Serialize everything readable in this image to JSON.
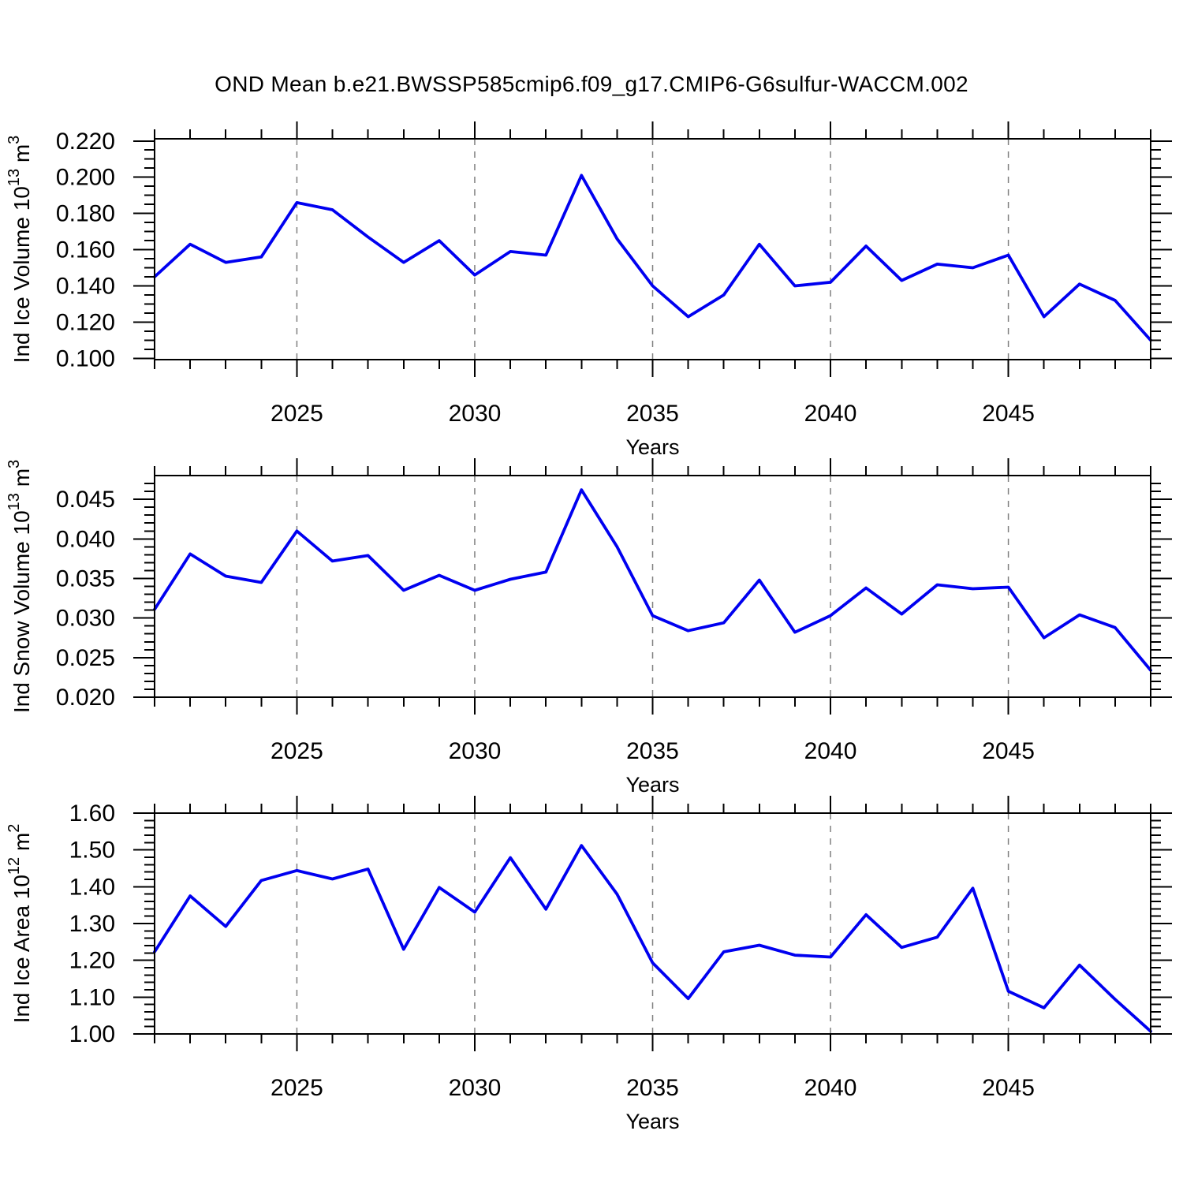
{
  "title": "OND Mean b.e21.BWSSP585cmip6.f09_g17.CMIP6-G6sulfur-WACCM.002",
  "colors": {
    "line": "#0000f0",
    "grid": "#7f7f7f",
    "axis": "#000000",
    "text": "#000000",
    "background": "#ffffff"
  },
  "x_axis": {
    "label": "Years",
    "start": 2021,
    "end": 2049,
    "major_ticks": [
      2025,
      2030,
      2035,
      2040,
      2045
    ],
    "minor_step": 1
  },
  "chart_data": [
    {
      "type": "line",
      "name": "ice-volume",
      "ylabel": "Ind Ice Volume 10^13 m^3",
      "ylabel_parts": [
        {
          "t": "Ind Ice Volume 10",
          "sup": false
        },
        {
          "t": "13",
          "sup": true
        },
        {
          "t": " m",
          "sup": false
        },
        {
          "t": "3",
          "sup": true
        }
      ],
      "xlabel": "Years",
      "ylim": [
        0.0993,
        0.2212
      ],
      "ytick_labels": [
        "0.100",
        "0.120",
        "0.140",
        "0.160",
        "0.180",
        "0.200",
        "0.220"
      ],
      "ytick_values": [
        0.1,
        0.12,
        0.14,
        0.16,
        0.18,
        0.2,
        0.22
      ],
      "ytick_minor_step": 0.005,
      "grid": "vertical-dashed",
      "x": [
        2021,
        2022,
        2023,
        2024,
        2025,
        2026,
        2027,
        2028,
        2029,
        2030,
        2031,
        2032,
        2033,
        2034,
        2035,
        2036,
        2037,
        2038,
        2039,
        2040,
        2041,
        2042,
        2043,
        2044,
        2045,
        2046,
        2047,
        2048,
        2049
      ],
      "values": [
        0.145,
        0.163,
        0.153,
        0.156,
        0.186,
        0.182,
        0.167,
        0.153,
        0.165,
        0.146,
        0.159,
        0.157,
        0.201,
        0.166,
        0.14,
        0.123,
        0.135,
        0.163,
        0.14,
        0.142,
        0.162,
        0.143,
        0.152,
        0.15,
        0.157,
        0.123,
        0.141,
        0.132,
        0.11
      ]
    },
    {
      "type": "line",
      "name": "snow-volume",
      "ylabel": "Ind Snow Volume 10^13 m^3",
      "ylabel_parts": [
        {
          "t": "Ind Snow Volume 10",
          "sup": false
        },
        {
          "t": "13",
          "sup": true
        },
        {
          "t": " m",
          "sup": false
        },
        {
          "t": "3",
          "sup": true
        }
      ],
      "xlabel": "Years",
      "ylim": [
        0.02,
        0.048
      ],
      "ytick_labels": [
        "0.020",
        "0.025",
        "0.030",
        "0.035",
        "0.040",
        "0.045"
      ],
      "ytick_values": [
        0.02,
        0.025,
        0.03,
        0.035,
        0.04,
        0.045
      ],
      "ytick_minor_step": 0.001,
      "grid": "vertical-dashed",
      "x": [
        2021,
        2022,
        2023,
        2024,
        2025,
        2026,
        2027,
        2028,
        2029,
        2030,
        2031,
        2032,
        2033,
        2034,
        2035,
        2036,
        2037,
        2038,
        2039,
        2040,
        2041,
        2042,
        2043,
        2044,
        2045,
        2046,
        2047,
        2048,
        2049
      ],
      "values": [
        0.0311,
        0.0381,
        0.0353,
        0.0345,
        0.041,
        0.0372,
        0.0379,
        0.0335,
        0.0354,
        0.0335,
        0.0349,
        0.0358,
        0.0462,
        0.039,
        0.0303,
        0.0284,
        0.0294,
        0.0348,
        0.0282,
        0.0303,
        0.0338,
        0.0305,
        0.0342,
        0.0337,
        0.0339,
        0.0275,
        0.0304,
        0.0288,
        0.0234
      ]
    },
    {
      "type": "line",
      "name": "ice-area",
      "ylabel": "Ind Ice Area 10^12 m^2",
      "ylabel_parts": [
        {
          "t": "Ind Ice Area 10",
          "sup": false
        },
        {
          "t": "12",
          "sup": true
        },
        {
          "t": " m",
          "sup": false
        },
        {
          "t": "2",
          "sup": true
        }
      ],
      "xlabel": "Years",
      "ylim": [
        1.0,
        1.6
      ],
      "ytick_labels": [
        "1.00",
        "1.10",
        "1.20",
        "1.30",
        "1.40",
        "1.50",
        "1.60"
      ],
      "ytick_values": [
        1.0,
        1.1,
        1.2,
        1.3,
        1.4,
        1.5,
        1.6
      ],
      "ytick_minor_step": 0.02,
      "grid": "vertical-dashed",
      "x": [
        2021,
        2022,
        2023,
        2024,
        2025,
        2026,
        2027,
        2028,
        2029,
        2030,
        2031,
        2032,
        2033,
        2034,
        2035,
        2036,
        2037,
        2038,
        2039,
        2040,
        2041,
        2042,
        2043,
        2044,
        2045,
        2046,
        2047,
        2048,
        2049
      ],
      "values": [
        1.223,
        1.375,
        1.292,
        1.417,
        1.444,
        1.421,
        1.448,
        1.23,
        1.398,
        1.331,
        1.479,
        1.339,
        1.512,
        1.38,
        1.193,
        1.096,
        1.223,
        1.241,
        1.214,
        1.209,
        1.324,
        1.235,
        1.263,
        1.396,
        1.116,
        1.071,
        1.187,
        1.094,
        1.007
      ]
    }
  ]
}
